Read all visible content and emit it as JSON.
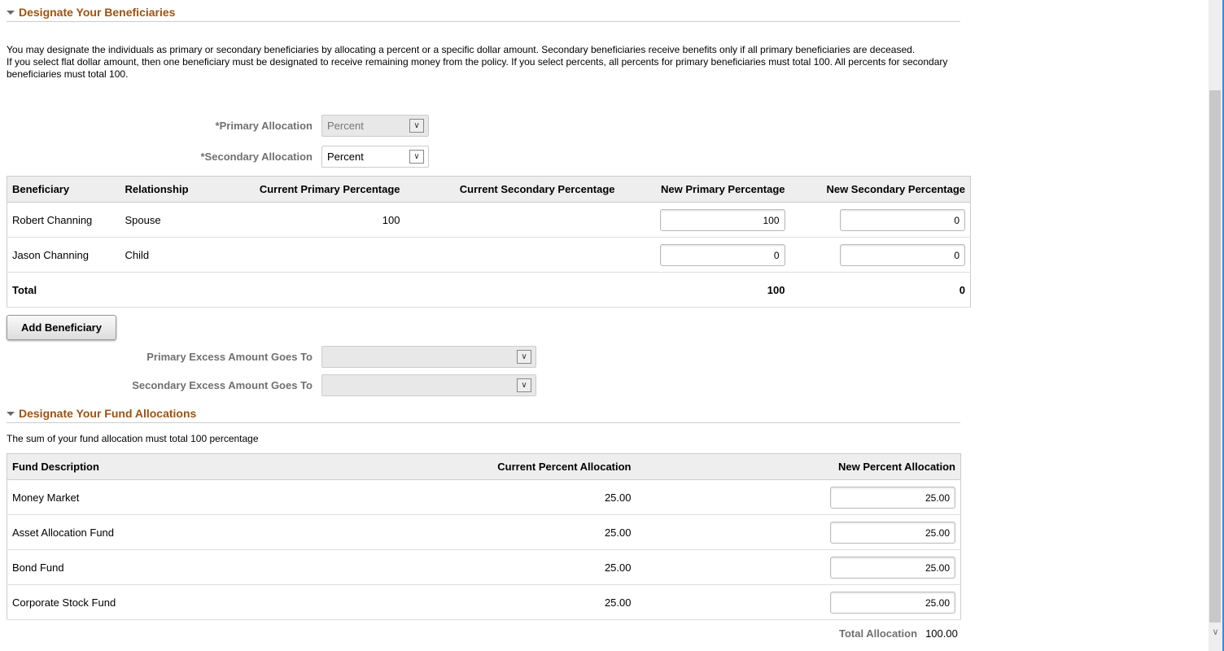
{
  "beneficiaries": {
    "title": "Designate Your Beneficiaries",
    "intro1": "You may designate the individuals as primary or secondary beneficiaries by allocating a percent or a specific dollar amount. Secondary beneficiaries receive benefits only if all primary beneficiaries are deceased.",
    "intro2": "If you select flat dollar amount, then one beneficiary must be designated to receive remaining money from the policy. If you select percents, all percents for primary beneficiaries must total 100. All percents for secondary beneficiaries must total 100.",
    "primary_allocation_label": "*Primary Allocation",
    "primary_allocation_value": "Percent",
    "secondary_allocation_label": "*Secondary Allocation",
    "secondary_allocation_value": "Percent",
    "columns": [
      "Beneficiary",
      "Relationship",
      "Current Primary Percentage",
      "Current Secondary Percentage",
      "New Primary Percentage",
      "New Secondary Percentage"
    ],
    "rows": [
      {
        "name": "Robert Channing",
        "relationship": "Spouse",
        "current_primary": "100",
        "current_secondary": "",
        "new_primary": "100",
        "new_secondary": "0"
      },
      {
        "name": "Jason Channing",
        "relationship": "Child",
        "current_primary": "",
        "current_secondary": "",
        "new_primary": "0",
        "new_secondary": "0"
      }
    ],
    "total_label": "Total",
    "total_primary": "100",
    "total_secondary": "0",
    "add_button": "Add Beneficiary",
    "primary_excess_label": "Primary Excess Amount Goes To",
    "secondary_excess_label": "Secondary Excess Amount Goes To"
  },
  "funds": {
    "title": "Designate Your Fund Allocations",
    "note": "The sum of your fund allocation must total 100 percentage",
    "columns": [
      "Fund Description",
      "Current Percent Allocation",
      "New Percent Allocation"
    ],
    "rows": [
      {
        "fund": "Money Market",
        "current": "25.00",
        "new": "25.00"
      },
      {
        "fund": "Asset Allocation Fund",
        "current": "25.00",
        "new": "25.00"
      },
      {
        "fund": "Bond Fund",
        "current": "25.00",
        "new": "25.00"
      },
      {
        "fund": "Corporate Stock Fund",
        "current": "25.00",
        "new": "25.00"
      }
    ],
    "total_label": "Total Allocation",
    "total_value": "100.00"
  },
  "colors": {
    "section_title": "#a0520f",
    "header_bg": "#eeeeee"
  }
}
